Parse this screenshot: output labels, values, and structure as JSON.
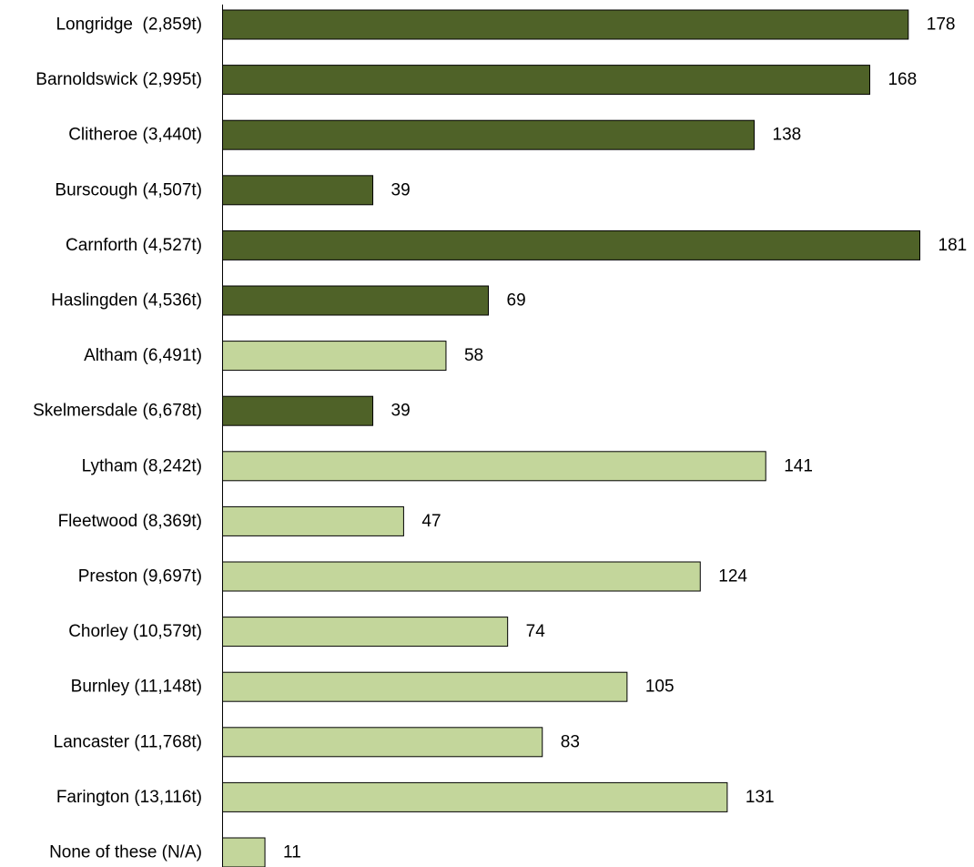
{
  "chart_data": {
    "type": "bar",
    "orientation": "horizontal",
    "title": "",
    "xlabel": "",
    "ylabel": "",
    "grid": false,
    "legend": "none",
    "xlim": [
      0,
      181
    ],
    "colors": {
      "dark": "#4f6228",
      "light": "#c3d69b",
      "outline": "#000000"
    },
    "bars": [
      {
        "label": "Longridge  (2,859t)",
        "value": 178,
        "value_label": "178",
        "shade": "dark"
      },
      {
        "label": "Barnoldswick (2,995t)",
        "value": 168,
        "value_label": "168",
        "shade": "dark"
      },
      {
        "label": "Clitheroe (3,440t)",
        "value": 138,
        "value_label": "138",
        "shade": "dark"
      },
      {
        "label": "Burscough (4,507t)",
        "value": 39,
        "value_label": "39",
        "shade": "dark"
      },
      {
        "label": "Carnforth (4,527t)",
        "value": 181,
        "value_label": "181",
        "shade": "dark"
      },
      {
        "label": "Haslingden (4,536t)",
        "value": 69,
        "value_label": "69",
        "shade": "dark"
      },
      {
        "label": "Altham (6,491t)",
        "value": 58,
        "value_label": "58",
        "shade": "light"
      },
      {
        "label": "Skelmersdale (6,678t)",
        "value": 39,
        "value_label": "39",
        "shade": "dark"
      },
      {
        "label": "Lytham (8,242t)",
        "value": 141,
        "value_label": "141",
        "shade": "light"
      },
      {
        "label": "Fleetwood (8,369t)",
        "value": 47,
        "value_label": "47",
        "shade": "light"
      },
      {
        "label": "Preston (9,697t)",
        "value": 124,
        "value_label": "124",
        "shade": "light"
      },
      {
        "label": "Chorley (10,579t)",
        "value": 74,
        "value_label": "74",
        "shade": "light"
      },
      {
        "label": "Burnley (11,148t)",
        "value": 105,
        "value_label": "105",
        "shade": "light"
      },
      {
        "label": "Lancaster (11,768t)",
        "value": 83,
        "value_label": "83",
        "shade": "light"
      },
      {
        "label": "Farington (13,116t)",
        "value": 131,
        "value_label": "131",
        "shade": "light"
      },
      {
        "label": "None of these (N/A)",
        "value": 11,
        "value_label": "11",
        "shade": "light"
      }
    ]
  }
}
